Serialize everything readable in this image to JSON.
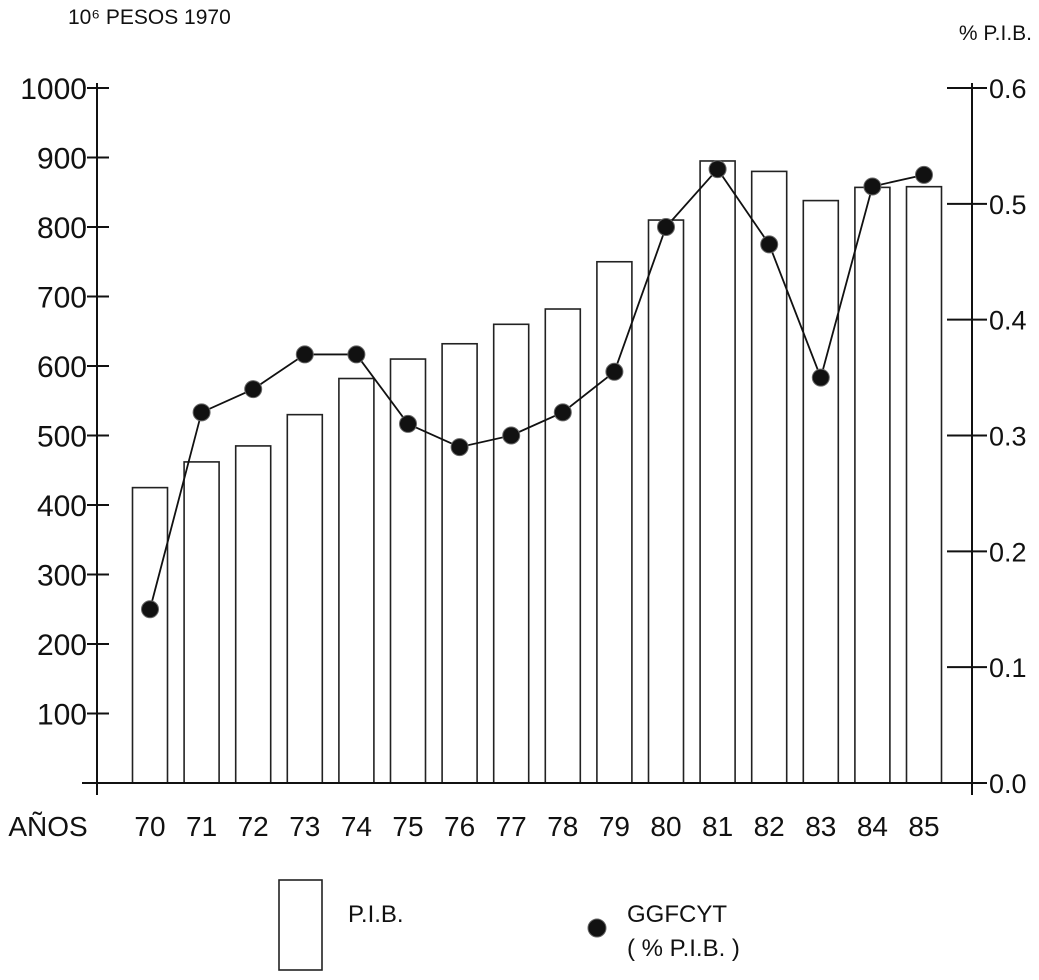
{
  "chart_data": {
    "type": "bar",
    "title": "",
    "left_axis_unit": "10⁶ PESOS 1970",
    "right_axis_unit": "% P.I.B.",
    "xlabel": "AÑOS",
    "categories": [
      "70",
      "71",
      "72",
      "73",
      "74",
      "75",
      "76",
      "77",
      "78",
      "79",
      "80",
      "81",
      "82",
      "83",
      "84",
      "85"
    ],
    "ylim": [
      0,
      1000
    ],
    "y_ticks": [
      "100",
      "200",
      "300",
      "400",
      "500",
      "600",
      "700",
      "800",
      "900",
      "1000"
    ],
    "y2lim": [
      0,
      0.6
    ],
    "y2_ticks": [
      "0.0",
      "0.1",
      "0.2",
      "0.3",
      "0.4",
      "0.5",
      "0.6"
    ],
    "series": [
      {
        "name": "P.I.B.",
        "type": "bar",
        "axis": "left",
        "values": [
          425,
          462,
          485,
          530,
          582,
          610,
          632,
          660,
          682,
          750,
          810,
          895,
          880,
          838,
          857,
          858
        ]
      },
      {
        "name": "GGFCYT",
        "type": "line",
        "axis": "right",
        "values": [
          0.15,
          0.32,
          0.34,
          0.37,
          0.37,
          0.31,
          0.29,
          0.3,
          0.32,
          0.355,
          0.48,
          0.53,
          0.465,
          0.35,
          0.515,
          0.525
        ]
      }
    ],
    "legend": {
      "placement": "bottom",
      "bar_label": "P.I.B.",
      "dot_label": "GGFCYT",
      "dot_sublabel": "( % P.I.B. )"
    },
    "grid": false
  }
}
